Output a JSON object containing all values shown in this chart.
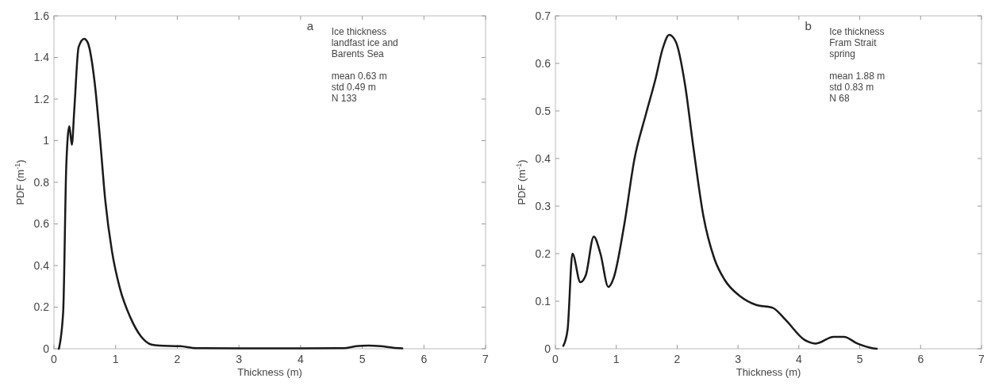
{
  "chart_data": [
    {
      "type": "line",
      "xlabel": "Thickness (m)",
      "ylabel": "PDF (m$^{-1}$)",
      "xlim": [
        0,
        7
      ],
      "xticks": [
        0,
        1,
        2,
        3,
        4,
        5,
        6,
        7
      ],
      "ylim": [
        0,
        1.6
      ],
      "yticks": [
        0,
        0.2,
        0.4,
        0.6,
        0.8,
        1,
        1.2,
        1.4,
        1.6
      ],
      "annotations": [
        "a",
        "Ice thickness\nlandfast ice and\nBarents Sea",
        "mean 0.63 m\nstd 0.49 m\nN 133"
      ],
      "series": [
        {
          "color": "#1a1a1a",
          "x": [
            0.08,
            0.15,
            0.2,
            0.25,
            0.29,
            0.33,
            0.4,
            0.49,
            0.55,
            0.66,
            0.75,
            0.83,
            0.94,
            1.07,
            1.24,
            1.41,
            1.58,
            1.71,
            2.05,
            2.31,
            3,
            4,
            4.7,
            4.9,
            5.1,
            5.3,
            5.5,
            5.65
          ],
          "values": [
            0,
            0.18,
            0.88,
            1.07,
            0.98,
            1.15,
            1.45,
            1.49,
            1.47,
            1.28,
            1,
            0.72,
            0.47,
            0.29,
            0.15,
            0.06,
            0.02,
            0.015,
            0.012,
            0.003,
            0.002,
            0.002,
            0.003,
            0.012,
            0.015,
            0.012,
            0.005,
            0.002
          ]
        }
      ]
    },
    {
      "type": "line",
      "xlabel": "Thickness (m)",
      "ylabel": "PDF (m$^{-1}$)",
      "xlim": [
        0,
        7
      ],
      "xticks": [
        0,
        1,
        2,
        3,
        4,
        5,
        6,
        7
      ],
      "ylim": [
        0,
        0.7
      ],
      "yticks": [
        0,
        0.1,
        0.2,
        0.3,
        0.4,
        0.5,
        0.6,
        0.7
      ],
      "annotations": [
        "b",
        "Ice thickness\nFram Strait\nspring",
        "mean 1.88 m\nstd 0.83 m\nN 68"
      ],
      "series": [
        {
          "color": "#1a1a1a",
          "x": [
            0.13,
            0.2,
            0.28,
            0.41,
            0.5,
            0.63,
            0.74,
            0.87,
            0.96,
            1.13,
            1.3,
            1.48,
            1.65,
            1.76,
            1.87,
            1.98,
            2.13,
            2.26,
            2.43,
            2.61,
            2.78,
            3.04,
            3.3,
            3.57,
            3.78,
            4.09,
            4.28,
            4.57,
            4.74,
            4.96,
            5.22,
            5.28
          ],
          "values": [
            0.006,
            0.04,
            0.2,
            0.14,
            0.155,
            0.236,
            0.2,
            0.13,
            0.15,
            0.26,
            0.4,
            0.49,
            0.57,
            0.63,
            0.66,
            0.645,
            0.555,
            0.43,
            0.28,
            0.19,
            0.145,
            0.11,
            0.092,
            0.086,
            0.061,
            0.019,
            0.011,
            0.025,
            0.025,
            0.011,
            0.001,
            0
          ]
        }
      ]
    }
  ]
}
